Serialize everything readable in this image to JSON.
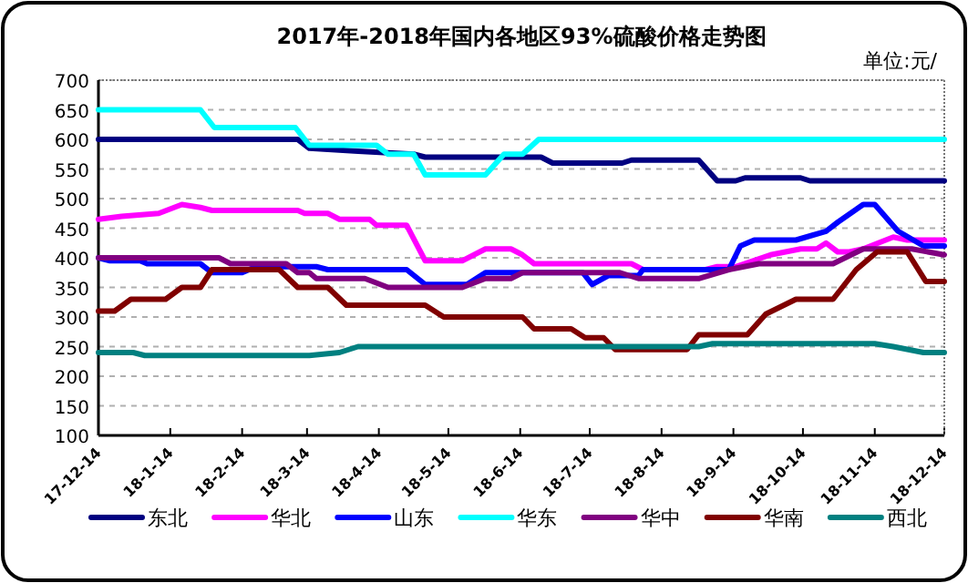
{
  "chart_data": {
    "type": "line",
    "title": "2017年-2018年国内各地区93%硫酸价格走势图",
    "ylabel": "单位:元/",
    "ylim": [
      100,
      700
    ],
    "yticks": [
      100,
      150,
      200,
      250,
      300,
      350,
      400,
      450,
      500,
      550,
      600,
      650,
      700
    ],
    "xlim": [
      "2017-12-14",
      "2018-12-14"
    ],
    "xticks": [
      {
        "value": "2017-12-14",
        "label": "17-12-14"
      },
      {
        "value": "2018-01-14",
        "label": "18-1-14"
      },
      {
        "value": "2018-02-14",
        "label": "18-2-14"
      },
      {
        "value": "2018-03-14",
        "label": "18-3-14"
      },
      {
        "value": "2018-04-14",
        "label": "18-4-14"
      },
      {
        "value": "2018-05-14",
        "label": "18-5-14"
      },
      {
        "value": "2018-06-14",
        "label": "18-6-14"
      },
      {
        "value": "2018-07-14",
        "label": "18-7-14"
      },
      {
        "value": "2018-08-14",
        "label": "18-8-14"
      },
      {
        "value": "2018-09-14",
        "label": "18-9-14"
      },
      {
        "value": "2018-10-14",
        "label": "18-10-14"
      },
      {
        "value": "2018-11-14",
        "label": "18-11-14"
      },
      {
        "value": "2018-12-14",
        "label": "18-12-14"
      }
    ],
    "grid": "y",
    "legend": "bottom",
    "marker": "none",
    "line_style": "solid",
    "series": [
      {
        "name": "东北",
        "color": "#000080",
        "x": [
          "2017-12-14",
          "2018-03-10",
          "2018-03-15",
          "2018-04-05",
          "2018-04-29",
          "2018-05-04",
          "2018-06-23",
          "2018-06-28",
          "2018-07-28",
          "2018-08-01",
          "2018-08-30",
          "2018-09-07",
          "2018-09-15",
          "2018-09-19",
          "2018-10-13",
          "2018-10-17",
          "2018-12-14"
        ],
        "values": [
          600,
          600,
          585,
          580,
          575,
          570,
          570,
          560,
          560,
          565,
          565,
          530,
          530,
          535,
          535,
          530,
          530
        ]
      },
      {
        "name": "华北",
        "color": "#ff00ff",
        "x": [
          "2017-12-14",
          "2017-12-24",
          "2018-01-09",
          "2018-01-19",
          "2018-01-27",
          "2018-02-01",
          "2018-03-10",
          "2018-03-13",
          "2018-03-23",
          "2018-03-28",
          "2018-04-10",
          "2018-04-13",
          "2018-04-26",
          "2018-05-04",
          "2018-05-20",
          "2018-05-30",
          "2018-06-10",
          "2018-06-15",
          "2018-06-20",
          "2018-08-01",
          "2018-08-06",
          "2018-09-02",
          "2018-09-07",
          "2018-09-15",
          "2018-09-30",
          "2018-10-13",
          "2018-10-20",
          "2018-10-24",
          "2018-10-29",
          "2018-11-03",
          "2018-11-09",
          "2018-11-22",
          "2018-11-28",
          "2018-12-14"
        ],
        "values": [
          465,
          470,
          475,
          490,
          485,
          480,
          480,
          475,
          475,
          465,
          465,
          455,
          455,
          395,
          395,
          415,
          415,
          405,
          390,
          390,
          380,
          380,
          385,
          385,
          405,
          415,
          415,
          425,
          410,
          410,
          415,
          435,
          430,
          430
        ]
      },
      {
        "name": "山东",
        "color": "#0000ff",
        "x": [
          "2017-12-14",
          "2017-12-19",
          "2018-01-01",
          "2018-01-04",
          "2018-01-27",
          "2018-02-01",
          "2018-02-14",
          "2018-02-20",
          "2018-03-18",
          "2018-03-23",
          "2018-04-26",
          "2018-05-04",
          "2018-05-22",
          "2018-05-30",
          "2018-07-11",
          "2018-07-15",
          "2018-07-22",
          "2018-08-04",
          "2018-08-06",
          "2018-09-12",
          "2018-09-17",
          "2018-09-23",
          "2018-10-11",
          "2018-10-24",
          "2018-10-29",
          "2018-11-09",
          "2018-11-14",
          "2018-11-24",
          "2018-12-05",
          "2018-12-14"
        ],
        "values": [
          400,
          395,
          395,
          390,
          390,
          375,
          375,
          385,
          385,
          380,
          380,
          355,
          355,
          375,
          375,
          355,
          370,
          370,
          380,
          380,
          420,
          430,
          430,
          445,
          460,
          490,
          490,
          445,
          420,
          420
        ]
      },
      {
        "name": "华东",
        "color": "#00ffff",
        "x": [
          "2017-12-14",
          "2018-01-27",
          "2018-02-02",
          "2018-03-09",
          "2018-03-15",
          "2018-04-13",
          "2018-04-18",
          "2018-04-29",
          "2018-05-04",
          "2018-05-30",
          "2018-06-07",
          "2018-06-15",
          "2018-06-22",
          "2018-12-14"
        ],
        "values": [
          650,
          650,
          620,
          620,
          590,
          590,
          575,
          575,
          540,
          540,
          575,
          575,
          600,
          600
        ]
      },
      {
        "name": "华中",
        "color": "#800080",
        "x": [
          "2017-12-14",
          "2018-02-04",
          "2018-02-09",
          "2018-03-05",
          "2018-03-10",
          "2018-03-15",
          "2018-03-18",
          "2018-04-08",
          "2018-04-18",
          "2018-05-20",
          "2018-05-30",
          "2018-06-10",
          "2018-06-15",
          "2018-07-27",
          "2018-08-04",
          "2018-08-30",
          "2018-09-12",
          "2018-09-25",
          "2018-10-27",
          "2018-11-09",
          "2018-11-30",
          "2018-12-14"
        ],
        "values": [
          400,
          400,
          390,
          390,
          375,
          375,
          365,
          365,
          350,
          350,
          365,
          365,
          375,
          375,
          365,
          365,
          380,
          390,
          390,
          415,
          415,
          405
        ]
      },
      {
        "name": "华南",
        "color": "#800000",
        "x": [
          "2017-12-14",
          "2017-12-21",
          "2017-12-28",
          "2018-01-12",
          "2018-01-19",
          "2018-01-27",
          "2018-02-01",
          "2018-03-02",
          "2018-03-10",
          "2018-03-23",
          "2018-03-31",
          "2018-05-04",
          "2018-05-12",
          "2018-06-15",
          "2018-06-20",
          "2018-07-06",
          "2018-07-12",
          "2018-07-20",
          "2018-07-25",
          "2018-08-25",
          "2018-08-30",
          "2018-09-20",
          "2018-09-28",
          "2018-10-11",
          "2018-10-27",
          "2018-11-06",
          "2018-11-15",
          "2018-11-28",
          "2018-12-06",
          "2018-12-14"
        ],
        "values": [
          310,
          310,
          330,
          330,
          350,
          350,
          380,
          380,
          350,
          350,
          320,
          320,
          300,
          300,
          280,
          280,
          265,
          265,
          245,
          245,
          270,
          270,
          305,
          330,
          330,
          380,
          410,
          410,
          360,
          360
        ]
      },
      {
        "name": "西北",
        "color": "#008080",
        "x": [
          "2017-12-14",
          "2017-12-29",
          "2018-01-03",
          "2018-03-15",
          "2018-03-28",
          "2018-04-05",
          "2018-08-30",
          "2018-09-05",
          "2018-11-14",
          "2018-11-22",
          "2018-12-05",
          "2018-12-14"
        ],
        "values": [
          240,
          240,
          235,
          235,
          240,
          250,
          250,
          255,
          255,
          250,
          240,
          240
        ]
      }
    ]
  }
}
